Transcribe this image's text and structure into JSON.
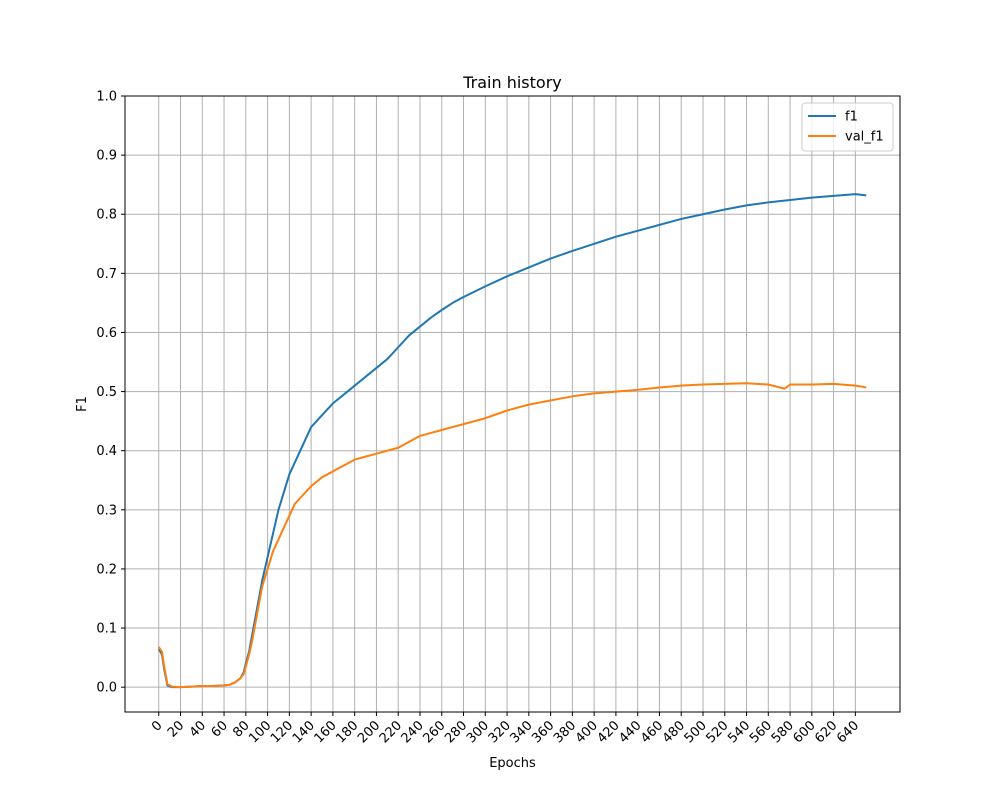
{
  "chart_data": {
    "type": "line",
    "title": "Train history",
    "xlabel": "Epochs",
    "ylabel": "F1",
    "xlim": [
      -31,
      681
    ],
    "ylim": [
      -0.042,
      1.0
    ],
    "xticks": [
      0,
      20,
      40,
      60,
      80,
      100,
      120,
      140,
      160,
      180,
      200,
      220,
      240,
      260,
      280,
      300,
      320,
      340,
      360,
      380,
      400,
      420,
      440,
      460,
      480,
      500,
      520,
      540,
      560,
      580,
      600,
      620,
      640
    ],
    "xtick_labels": [
      "0",
      "20",
      "40",
      "60",
      "80",
      "100",
      "120",
      "140",
      "160",
      "180",
      "200",
      "220",
      "240",
      "260",
      "280",
      "300",
      "320",
      "340",
      "360",
      "380",
      "400",
      "420",
      "440",
      "460",
      "480",
      "500",
      "520",
      "540",
      "560",
      "580",
      "600",
      "620",
      "640"
    ],
    "yticks": [
      0.0,
      0.1,
      0.2,
      0.3,
      0.4,
      0.5,
      0.6,
      0.7,
      0.8,
      0.9,
      1.0
    ],
    "ytick_labels": [
      "0.0",
      "0.1",
      "0.2",
      "0.3",
      "0.4",
      "0.5",
      "0.6",
      "0.7",
      "0.8",
      "0.9",
      "1.0"
    ],
    "grid": true,
    "legend_position": "top-right",
    "series": [
      {
        "name": "f1",
        "color": "#1f77b4",
        "x": [
          0,
          3,
          5,
          8,
          12,
          20,
          30,
          40,
          50,
          60,
          65,
          70,
          75,
          78,
          80,
          83,
          86,
          90,
          95,
          100,
          105,
          110,
          115,
          120,
          125,
          130,
          140,
          150,
          160,
          170,
          180,
          190,
          200,
          210,
          220,
          230,
          240,
          250,
          260,
          270,
          280,
          300,
          320,
          340,
          360,
          380,
          400,
          420,
          440,
          460,
          480,
          500,
          520,
          540,
          560,
          580,
          600,
          620,
          640,
          650
        ],
        "y": [
          0.065,
          0.055,
          0.03,
          0.003,
          0.0,
          0.0,
          0.001,
          0.002,
          0.002,
          0.003,
          0.004,
          0.008,
          0.015,
          0.025,
          0.04,
          0.06,
          0.09,
          0.13,
          0.18,
          0.22,
          0.26,
          0.3,
          0.33,
          0.36,
          0.38,
          0.4,
          0.44,
          0.46,
          0.48,
          0.495,
          0.51,
          0.525,
          0.54,
          0.555,
          0.575,
          0.595,
          0.61,
          0.625,
          0.638,
          0.65,
          0.66,
          0.678,
          0.695,
          0.71,
          0.725,
          0.738,
          0.75,
          0.762,
          0.772,
          0.782,
          0.792,
          0.8,
          0.808,
          0.815,
          0.82,
          0.824,
          0.828,
          0.831,
          0.834,
          0.832
        ]
      },
      {
        "name": "val_f1",
        "color": "#ff7f0e",
        "x": [
          0,
          3,
          5,
          8,
          12,
          20,
          30,
          40,
          50,
          60,
          65,
          70,
          75,
          78,
          80,
          83,
          86,
          90,
          95,
          100,
          105,
          110,
          115,
          120,
          125,
          130,
          140,
          150,
          160,
          170,
          180,
          190,
          200,
          210,
          220,
          230,
          240,
          250,
          260,
          270,
          280,
          300,
          320,
          340,
          360,
          380,
          400,
          420,
          440,
          460,
          480,
          500,
          520,
          540,
          560,
          575,
          580,
          600,
          620,
          640,
          650
        ],
        "y": [
          0.068,
          0.06,
          0.035,
          0.005,
          0.001,
          0.0,
          0.001,
          0.002,
          0.002,
          0.003,
          0.004,
          0.008,
          0.015,
          0.022,
          0.035,
          0.055,
          0.08,
          0.12,
          0.17,
          0.2,
          0.23,
          0.25,
          0.27,
          0.29,
          0.31,
          0.32,
          0.34,
          0.355,
          0.365,
          0.375,
          0.385,
          0.39,
          0.395,
          0.4,
          0.405,
          0.415,
          0.425,
          0.43,
          0.435,
          0.44,
          0.445,
          0.455,
          0.468,
          0.478,
          0.485,
          0.492,
          0.497,
          0.5,
          0.503,
          0.507,
          0.51,
          0.512,
          0.513,
          0.514,
          0.512,
          0.505,
          0.512,
          0.512,
          0.513,
          0.51,
          0.507
        ]
      }
    ]
  }
}
